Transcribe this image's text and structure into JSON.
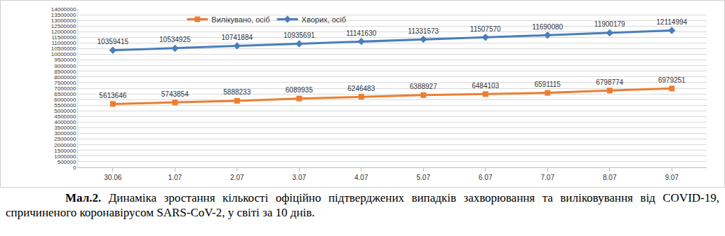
{
  "chart_data": {
    "type": "line",
    "caption_label": "Мал.2.",
    "caption": "Динаміка зростання кількості офіційно підтверджених випадків захворювання та виліковування від COVID-19, спричиненого коронавірусом SARS-CoV-2, у світі за 10 днів.",
    "categories": [
      "30.06",
      "1.07",
      "2.07",
      "3.07",
      "4.07",
      "5.07",
      "6.07",
      "7.07",
      "8.07",
      "9.07"
    ],
    "series": [
      {
        "name": "Вилікувано, осіб",
        "color": "#ed7d31",
        "marker": "square",
        "values": [
          5613646,
          5743854,
          5888233,
          6089935,
          6246483,
          6388927,
          6484103,
          6591115,
          6798774,
          6979251
        ]
      },
      {
        "name": "Хворих, осіб",
        "color": "#4a7ebb",
        "marker": "diamond",
        "values": [
          10359415,
          10534925,
          10741884,
          10935691,
          11141630,
          11331573,
          11507570,
          11690080,
          11900179,
          12114994
        ]
      }
    ],
    "ylim": [
      0,
      14000000
    ],
    "yticks": [
      0,
      500000,
      1000000,
      1500000,
      2000000,
      2500000,
      3000000,
      3500000,
      4000000,
      4500000,
      5000000,
      5500000,
      6000000,
      6500000,
      7000000,
      7500000,
      8000000,
      8500000,
      9000000,
      9500000,
      10000000,
      10500000,
      11000000,
      11500000,
      12000000,
      12500000,
      13000000,
      13500000,
      14000000
    ],
    "grid": true,
    "legend": "top",
    "data_labels": true
  }
}
